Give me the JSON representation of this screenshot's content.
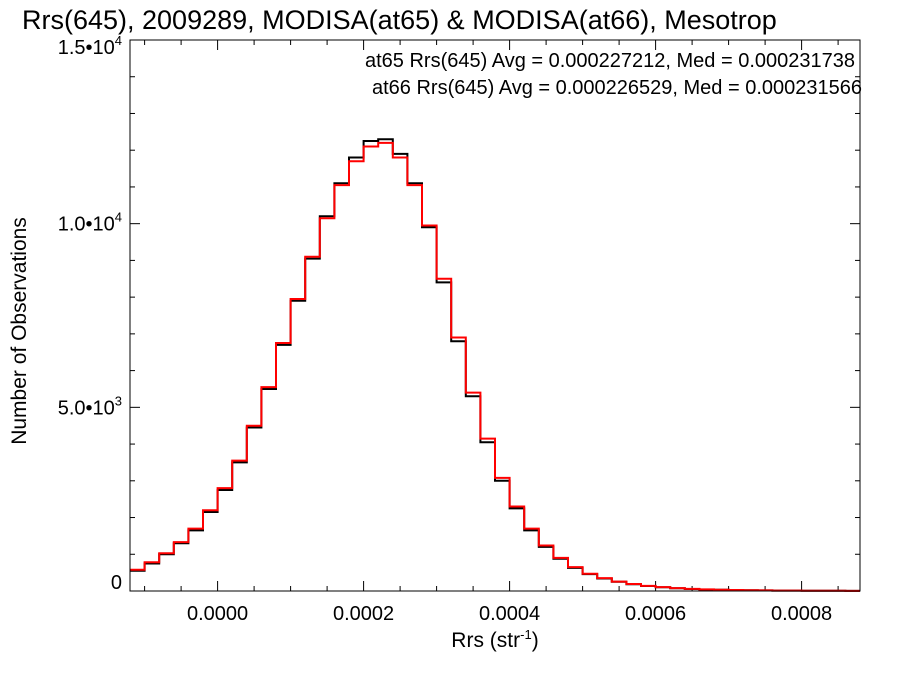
{
  "chart_data": {
    "type": "histogram",
    "title": "Rrs(645), 2009289, MODISA(at65) & MODISA(at66), Mesotrop",
    "xlabel": "Rrs (str",
    "xlabel_sup": "-1",
    "xlabel_close": ")",
    "ylabel": "Number of Observations",
    "xlim": [
      -0.00012,
      0.00088
    ],
    "ylim": [
      0,
      15000
    ],
    "x_ticks": [
      {
        "value": 0.0,
        "label": "0.0000"
      },
      {
        "value": 0.0002,
        "label": "0.0002"
      },
      {
        "value": 0.0004,
        "label": "0.0004"
      },
      {
        "value": 0.0006,
        "label": "0.0006"
      },
      {
        "value": 0.0008,
        "label": "0.0008"
      }
    ],
    "y_ticks": [
      {
        "value": 0,
        "label": "0",
        "sup": ""
      },
      {
        "value": 5000,
        "label": "5.0•10",
        "sup": "3"
      },
      {
        "value": 10000,
        "label": "1.0•10",
        "sup": "4"
      },
      {
        "value": 15000,
        "label": "1.5•10",
        "sup": "4"
      }
    ],
    "grid": false,
    "legend_placement": "top-right",
    "series": [
      {
        "name": "at65",
        "color": "#000000",
        "legend_text": "at65 Rrs(645) Avg = 0.000227212, Med = 0.000231738",
        "x": [
          -0.00012,
          -0.0001,
          -8e-05,
          -6e-05,
          -4e-05,
          -2e-05,
          0.0,
          2e-05,
          4e-05,
          6e-05,
          8e-05,
          0.0001,
          0.00012,
          0.00014,
          0.00016,
          0.00018,
          0.0002,
          0.00022,
          0.00024,
          0.00026,
          0.00028,
          0.0003,
          0.00032,
          0.00034,
          0.00036,
          0.00038,
          0.0004,
          0.00042,
          0.00044,
          0.00046,
          0.00048,
          0.0005,
          0.00052,
          0.00054,
          0.00056,
          0.00058,
          0.0006,
          0.00062,
          0.00064,
          0.00066,
          0.00068,
          0.0007,
          0.00072,
          0.00074,
          0.00076,
          0.00078,
          0.0008,
          0.00082,
          0.00084,
          0.00086,
          0.00088
        ],
        "y": [
          550,
          750,
          1000,
          1300,
          1650,
          2150,
          2750,
          3500,
          4450,
          5500,
          6700,
          7900,
          9050,
          10200,
          11100,
          11800,
          12250,
          12300,
          11900,
          11100,
          9900,
          8400,
          6800,
          5300,
          4050,
          3000,
          2250,
          1650,
          1200,
          880,
          630,
          460,
          340,
          250,
          185,
          135,
          100,
          75,
          55,
          42,
          32,
          25,
          20,
          15,
          12,
          10,
          8,
          6,
          5,
          4,
          3
        ]
      },
      {
        "name": "at66",
        "color": "#ff0000",
        "legend_text": "at66 Rrs(645) Avg = 0.000226529, Med = 0.000231566",
        "x": [
          -0.00012,
          -0.0001,
          -8e-05,
          -6e-05,
          -4e-05,
          -2e-05,
          0.0,
          2e-05,
          4e-05,
          6e-05,
          8e-05,
          0.0001,
          0.00012,
          0.00014,
          0.00016,
          0.00018,
          0.0002,
          0.00022,
          0.00024,
          0.00026,
          0.00028,
          0.0003,
          0.00032,
          0.00034,
          0.00036,
          0.00038,
          0.0004,
          0.00042,
          0.00044,
          0.00046,
          0.00048,
          0.0005,
          0.00052,
          0.00054,
          0.00056,
          0.00058,
          0.0006,
          0.00062,
          0.00064,
          0.00066,
          0.00068,
          0.0007,
          0.00072,
          0.00074,
          0.00076,
          0.00078,
          0.0008,
          0.00082,
          0.00084,
          0.00086,
          0.00088
        ],
        "y": [
          580,
          780,
          1030,
          1330,
          1700,
          2200,
          2800,
          3550,
          4500,
          5550,
          6750,
          7950,
          9100,
          10150,
          11050,
          11700,
          12100,
          12200,
          11800,
          11050,
          9950,
          8500,
          6900,
          5400,
          4150,
          3080,
          2300,
          1700,
          1240,
          900,
          650,
          470,
          350,
          255,
          190,
          140,
          105,
          78,
          57,
          44,
          34,
          26,
          20,
          15,
          12,
          10,
          8,
          6,
          5,
          4,
          3
        ]
      }
    ]
  }
}
